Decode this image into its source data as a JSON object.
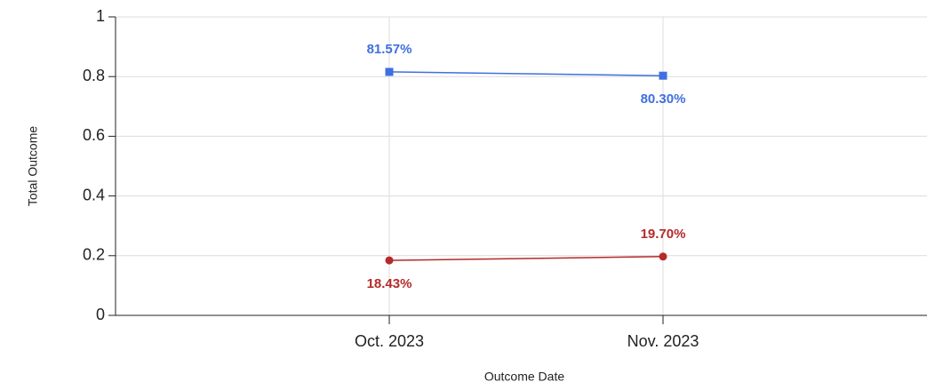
{
  "chart_data": {
    "type": "line",
    "x_label": "Outcome Date",
    "y_label": "Total Outcome",
    "categories": [
      "Oct. 2023",
      "Nov. 2023"
    ],
    "series": [
      {
        "color": "#3f6fe0",
        "marker": "square",
        "values": [
          0.8157,
          0.803
        ],
        "value_labels": [
          "81.57%",
          "80.30%"
        ]
      },
      {
        "color": "#b52a2a",
        "marker": "circle",
        "values": [
          0.1843,
          0.197
        ],
        "value_labels": [
          "18.43%",
          "19.70%"
        ]
      }
    ],
    "ylim": [
      0,
      1
    ],
    "yticks": [
      0,
      0.2,
      0.4,
      0.6,
      0.8,
      1
    ],
    "grid": true
  }
}
